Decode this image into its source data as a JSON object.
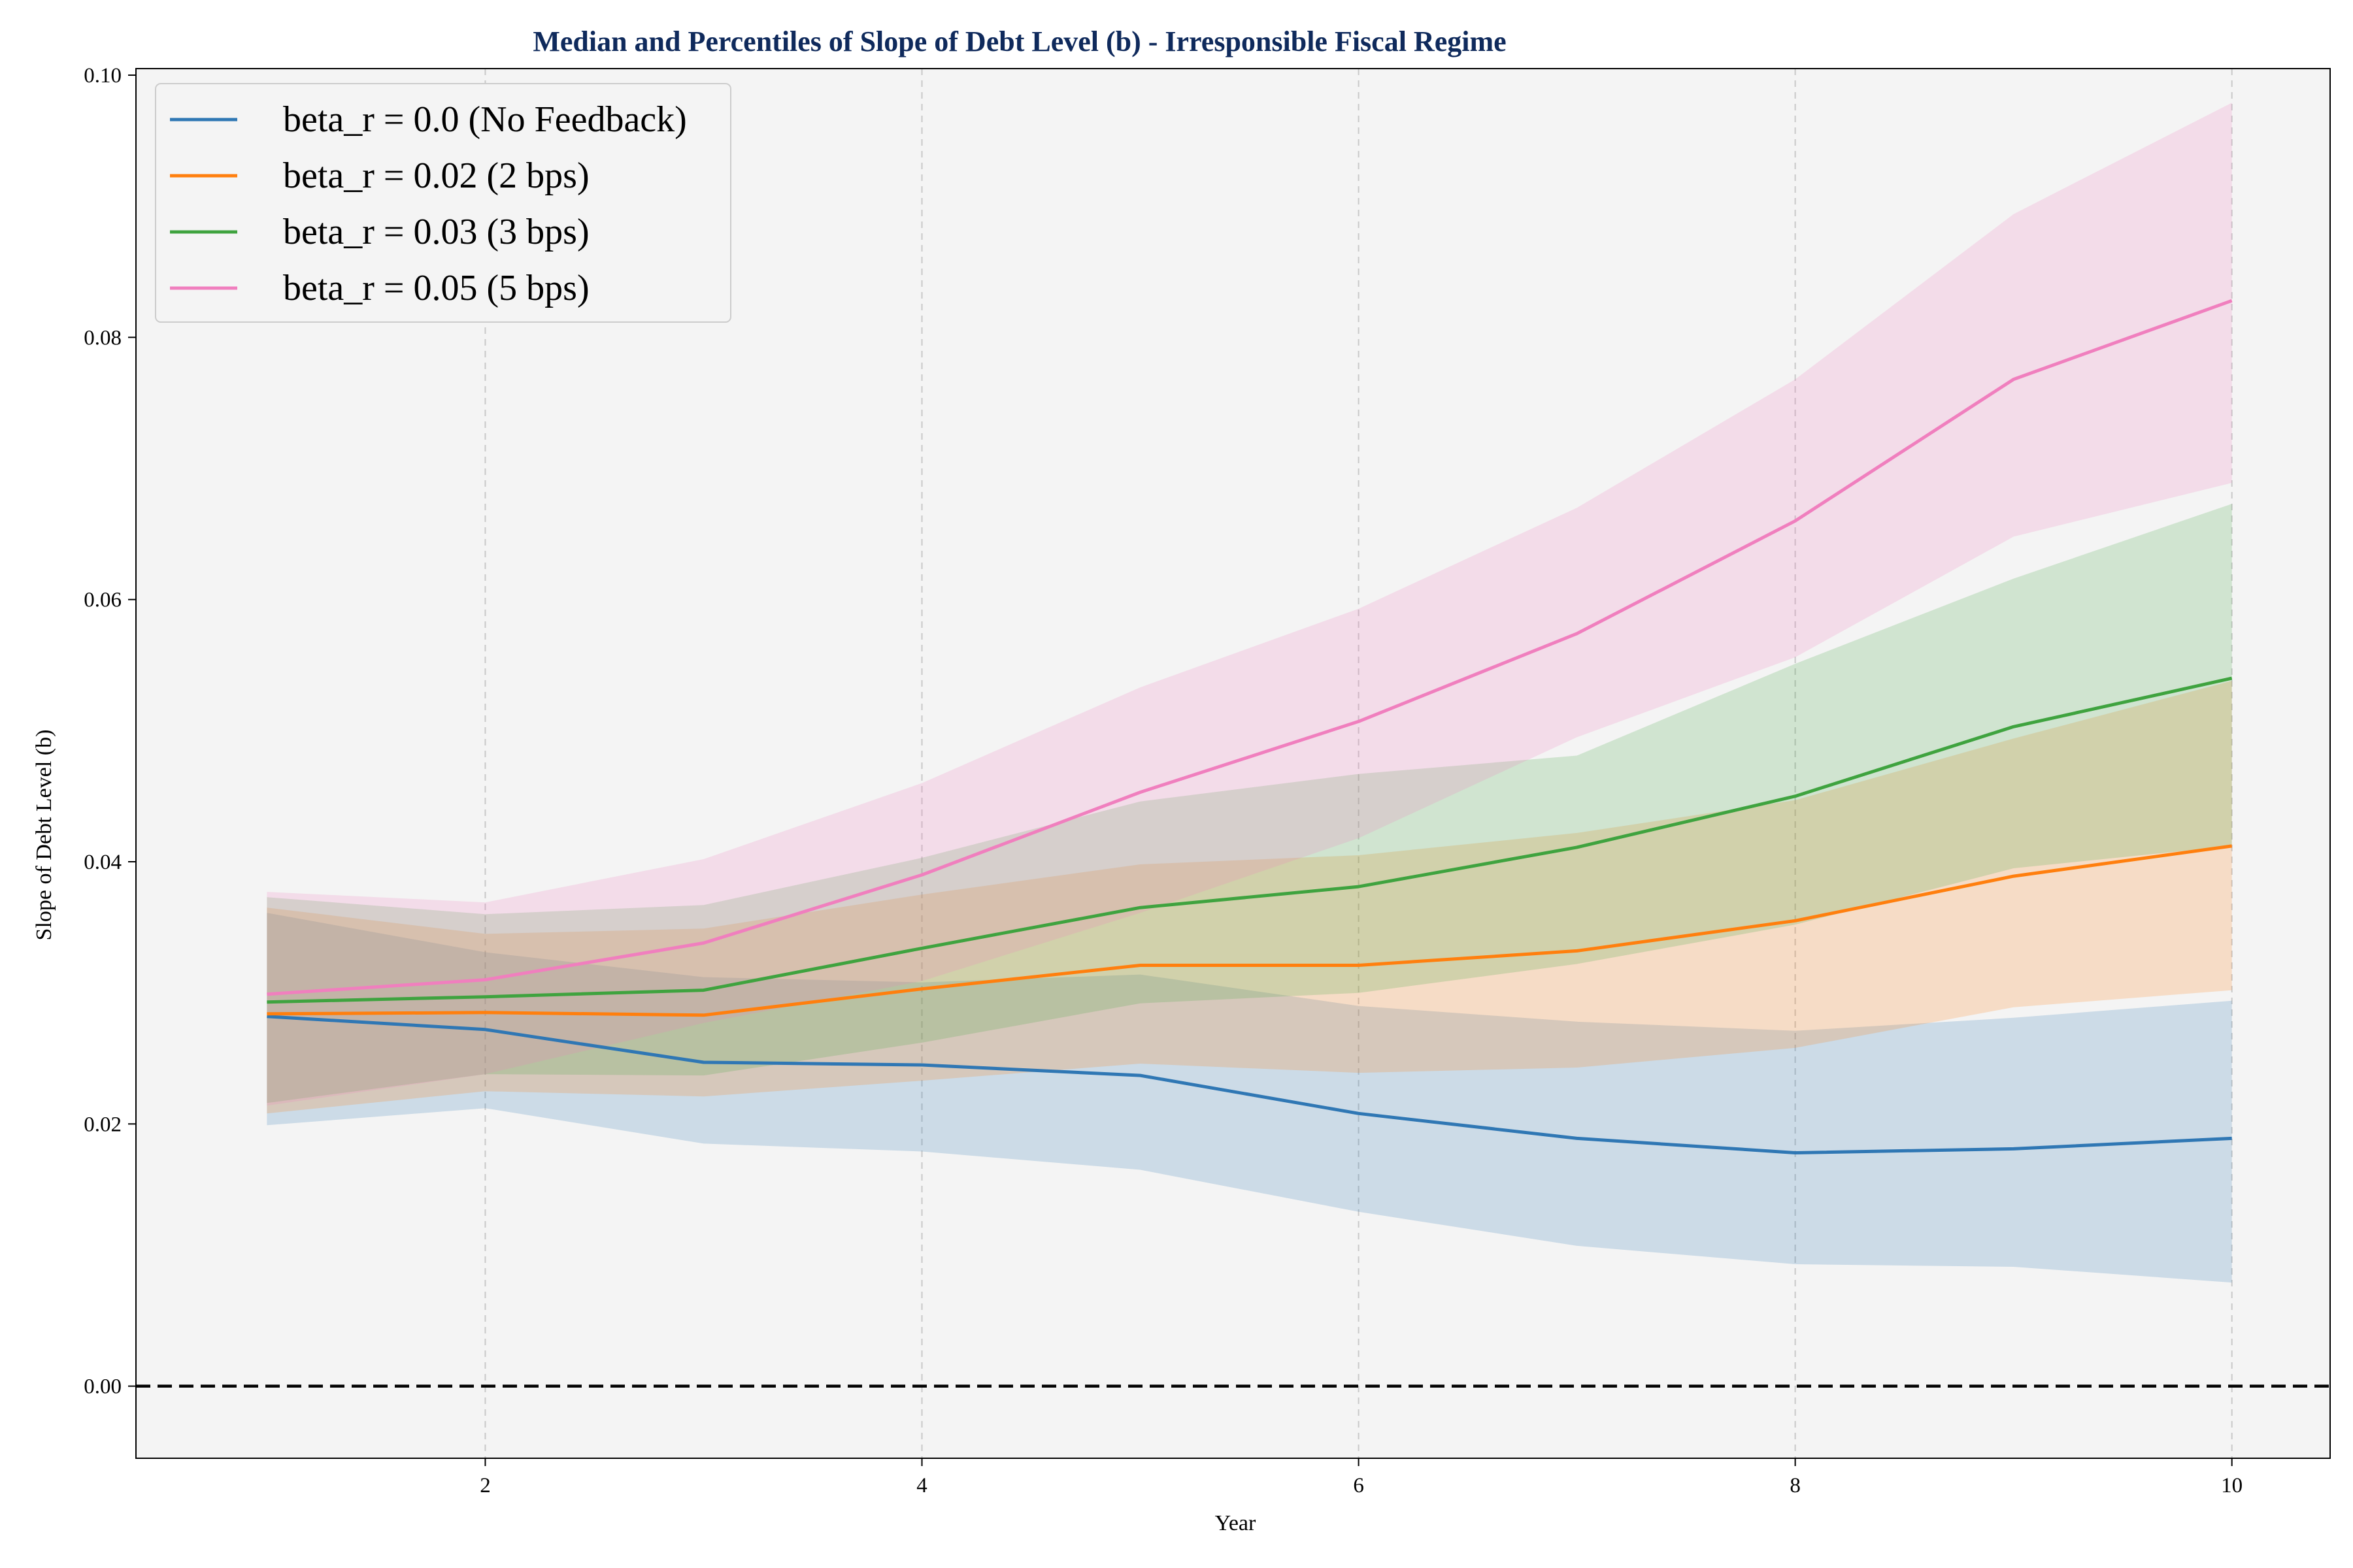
{
  "chart_data": {
    "type": "line",
    "title": "Median and Percentiles of Slope of Debt Level (b) - Irresponsible Fiscal Regime",
    "xlabel": "Year",
    "ylabel": "Slope of Debt Level (b)",
    "xlim": [
      0.4,
      10.45
    ],
    "ylim": [
      -0.0055,
      0.1005
    ],
    "xticks": [
      2,
      4,
      6,
      8,
      10
    ],
    "xtick_labels": [
      "2",
      "4",
      "6",
      "8",
      "10"
    ],
    "yticks": [
      0.0,
      0.02,
      0.04,
      0.06,
      0.08,
      0.1
    ],
    "ytick_labels": [
      "0.00",
      "0.02",
      "0.04",
      "0.06",
      "0.08",
      "0.10"
    ],
    "grid": "vertical dashed",
    "legend_position": "top-left",
    "reference_line": {
      "y": 0.0,
      "style": "dashed",
      "color": "#000000"
    },
    "x": [
      1,
      2,
      3,
      4,
      5,
      6,
      7,
      8,
      9,
      10
    ],
    "series": [
      {
        "name": "beta_r = 0.0 (No Feedback)",
        "color": "#2f77b4",
        "median": [
          0.0282,
          0.0272,
          0.0247,
          0.0245,
          0.0237,
          0.0208,
          0.0189,
          0.0178,
          0.0181,
          0.0189
        ],
        "lower": [
          0.0199,
          0.0212,
          0.0185,
          0.0179,
          0.0165,
          0.0133,
          0.0107,
          0.0093,
          0.0091,
          0.0079
        ],
        "upper": [
          0.0361,
          0.0331,
          0.0312,
          0.0308,
          0.0314,
          0.029,
          0.0278,
          0.0271,
          0.0281,
          0.0294
        ]
      },
      {
        "name": "beta_r = 0.02 (2 bps)",
        "color": "#ff7f0e",
        "median": [
          0.0284,
          0.0285,
          0.0283,
          0.0303,
          0.0321,
          0.0321,
          0.0332,
          0.0355,
          0.0389,
          0.0412
        ],
        "lower": [
          0.0208,
          0.0225,
          0.0221,
          0.0233,
          0.0246,
          0.0239,
          0.0243,
          0.0258,
          0.0289,
          0.0302
        ],
        "upper": [
          0.0365,
          0.0345,
          0.0349,
          0.0375,
          0.0398,
          0.0405,
          0.0422,
          0.0447,
          0.0494,
          0.0538
        ]
      },
      {
        "name": "beta_r = 0.03 (3 bps)",
        "color": "#3fa33f",
        "median": [
          0.0293,
          0.0297,
          0.0302,
          0.0334,
          0.0365,
          0.0381,
          0.0411,
          0.045,
          0.0503,
          0.054
        ],
        "lower": [
          0.0216,
          0.0238,
          0.0237,
          0.0262,
          0.0292,
          0.03,
          0.0322,
          0.0352,
          0.0395,
          0.0412
        ],
        "upper": [
          0.0373,
          0.036,
          0.0367,
          0.0403,
          0.0446,
          0.0467,
          0.0481,
          0.0551,
          0.0616,
          0.0673
        ]
      },
      {
        "name": "beta_r = 0.05 (5 bps)",
        "color": "#f07fbe",
        "median": [
          0.0299,
          0.031,
          0.0338,
          0.039,
          0.0453,
          0.0507,
          0.0574,
          0.066,
          0.0768,
          0.0828
        ],
        "lower": [
          0.0214,
          0.0238,
          0.0277,
          0.0309,
          0.0361,
          0.0418,
          0.0495,
          0.0556,
          0.0648,
          0.0689
        ],
        "upper": [
          0.0377,
          0.0369,
          0.0402,
          0.046,
          0.0533,
          0.0593,
          0.067,
          0.0768,
          0.0894,
          0.0979
        ]
      }
    ]
  }
}
